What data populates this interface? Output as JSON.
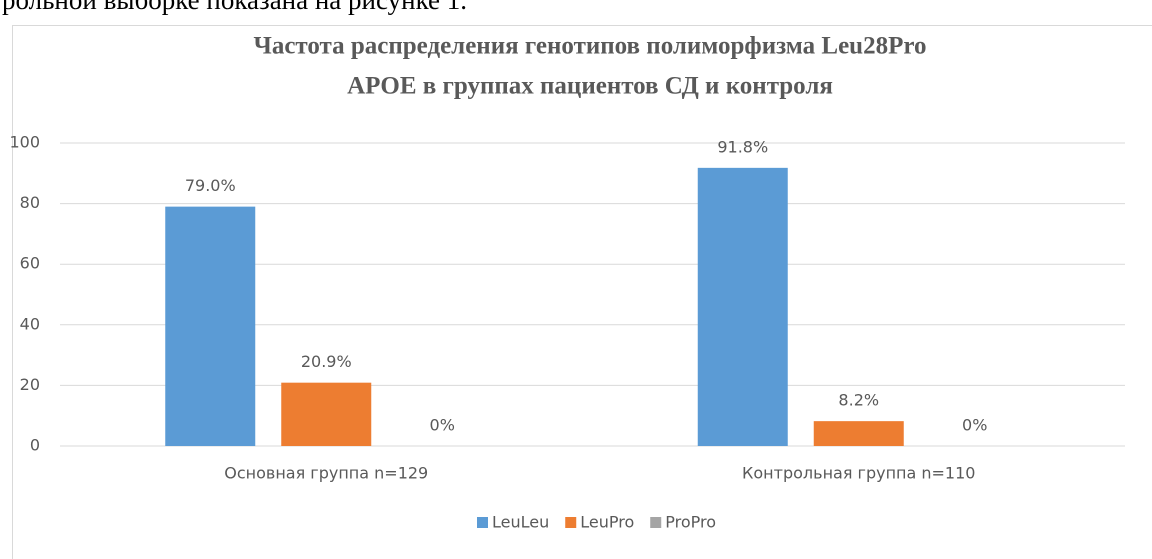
{
  "context_text": "рольной выборке показана на рисунке 1.",
  "chart_data": {
    "type": "bar",
    "title": "Частота распределения генотипов полиморфизма Leu28Pro",
    "subtitle": "APOE в группах пациентов СД и контроля",
    "categories": [
      "Основная группа n=129",
      "Контрольная группа n=110"
    ],
    "series": [
      {
        "name": "LeuLeu",
        "color": "#5b9bd5",
        "values": [
          79.0,
          91.8
        ],
        "value_labels": [
          "79.0%",
          "91.8%"
        ]
      },
      {
        "name": "LeuPro",
        "color": "#ed7d31",
        "values": [
          20.9,
          8.2
        ],
        "value_labels": [
          "20.9%",
          "8.2%"
        ]
      },
      {
        "name": "ProPro",
        "color": "#a5a5a5",
        "values": [
          0,
          0
        ],
        "value_labels": [
          "0%",
          "0%"
        ]
      }
    ],
    "ylim": [
      0,
      100
    ],
    "yticks": [
      0,
      20,
      40,
      60,
      80,
      100
    ],
    "grid": true,
    "legend": "bottom"
  }
}
